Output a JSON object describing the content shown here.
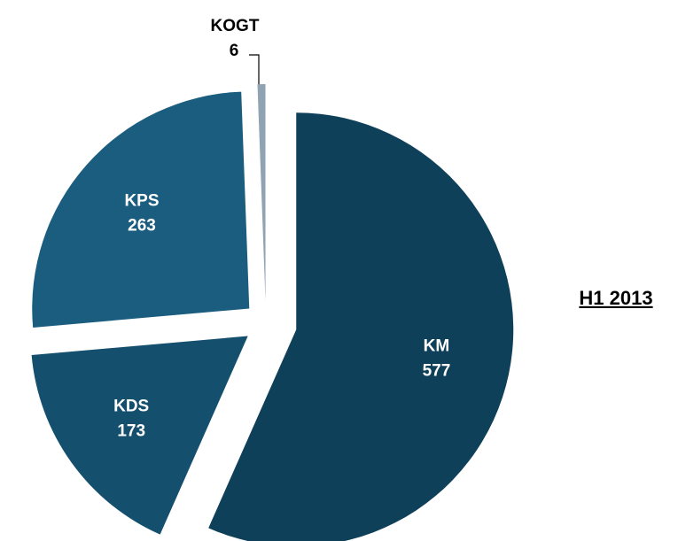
{
  "chart_data": {
    "type": "pie",
    "categories": [
      "KM",
      "KDS",
      "KPS",
      "KOGT"
    ],
    "values": [
      577,
      173,
      263,
      6
    ],
    "colors": [
      "#0f4059",
      "#154f6e",
      "#1a5d7e",
      "#8fa3b3"
    ],
    "annotation": "H1 2013"
  }
}
